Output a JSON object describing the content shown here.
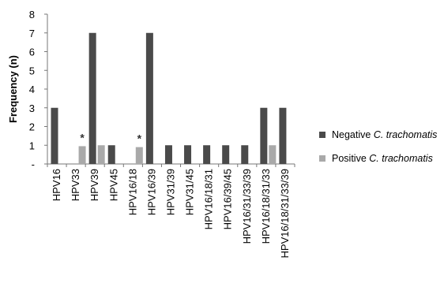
{
  "chart_data": {
    "type": "bar",
    "ylabel": "Frequency (n)",
    "ylim": [
      0,
      8
    ],
    "yticks": [
      "-",
      "1",
      "2",
      "3",
      "4",
      "5",
      "6",
      "7",
      "8"
    ],
    "categories": [
      "HPV16",
      "HPV33",
      "HPV39",
      "HPV45",
      "HPV16/18",
      "HPV16/39",
      "HPV31/39",
      "HPV31/45",
      "HPV16/18/31",
      "HPV16/39/45",
      "HPV16/31/33/39",
      "HPV16/18/31/33",
      "HPV16/18/31/33/39"
    ],
    "series": [
      {
        "name": "Negative C. trachomatis",
        "name_prefix": "Negative ",
        "name_italic": "C. trachomatis",
        "color": "#4a4a4a",
        "values": [
          3,
          0,
          7,
          1,
          0,
          7,
          1,
          1,
          1,
          1,
          1,
          3,
          3
        ]
      },
      {
        "name": "Positive C. trachomatis",
        "name_prefix": "Positive ",
        "name_italic": "C. trachomatis",
        "color": "#a9a9a9",
        "values": [
          0,
          0.95,
          1,
          0,
          0.9,
          0,
          0,
          0,
          0,
          0,
          0,
          1,
          0
        ]
      }
    ],
    "annotations": [
      {
        "category": "HPV33",
        "text": "*"
      },
      {
        "category": "HPV16/18",
        "text": "*"
      }
    ],
    "legend_position": "right",
    "grid": false
  }
}
